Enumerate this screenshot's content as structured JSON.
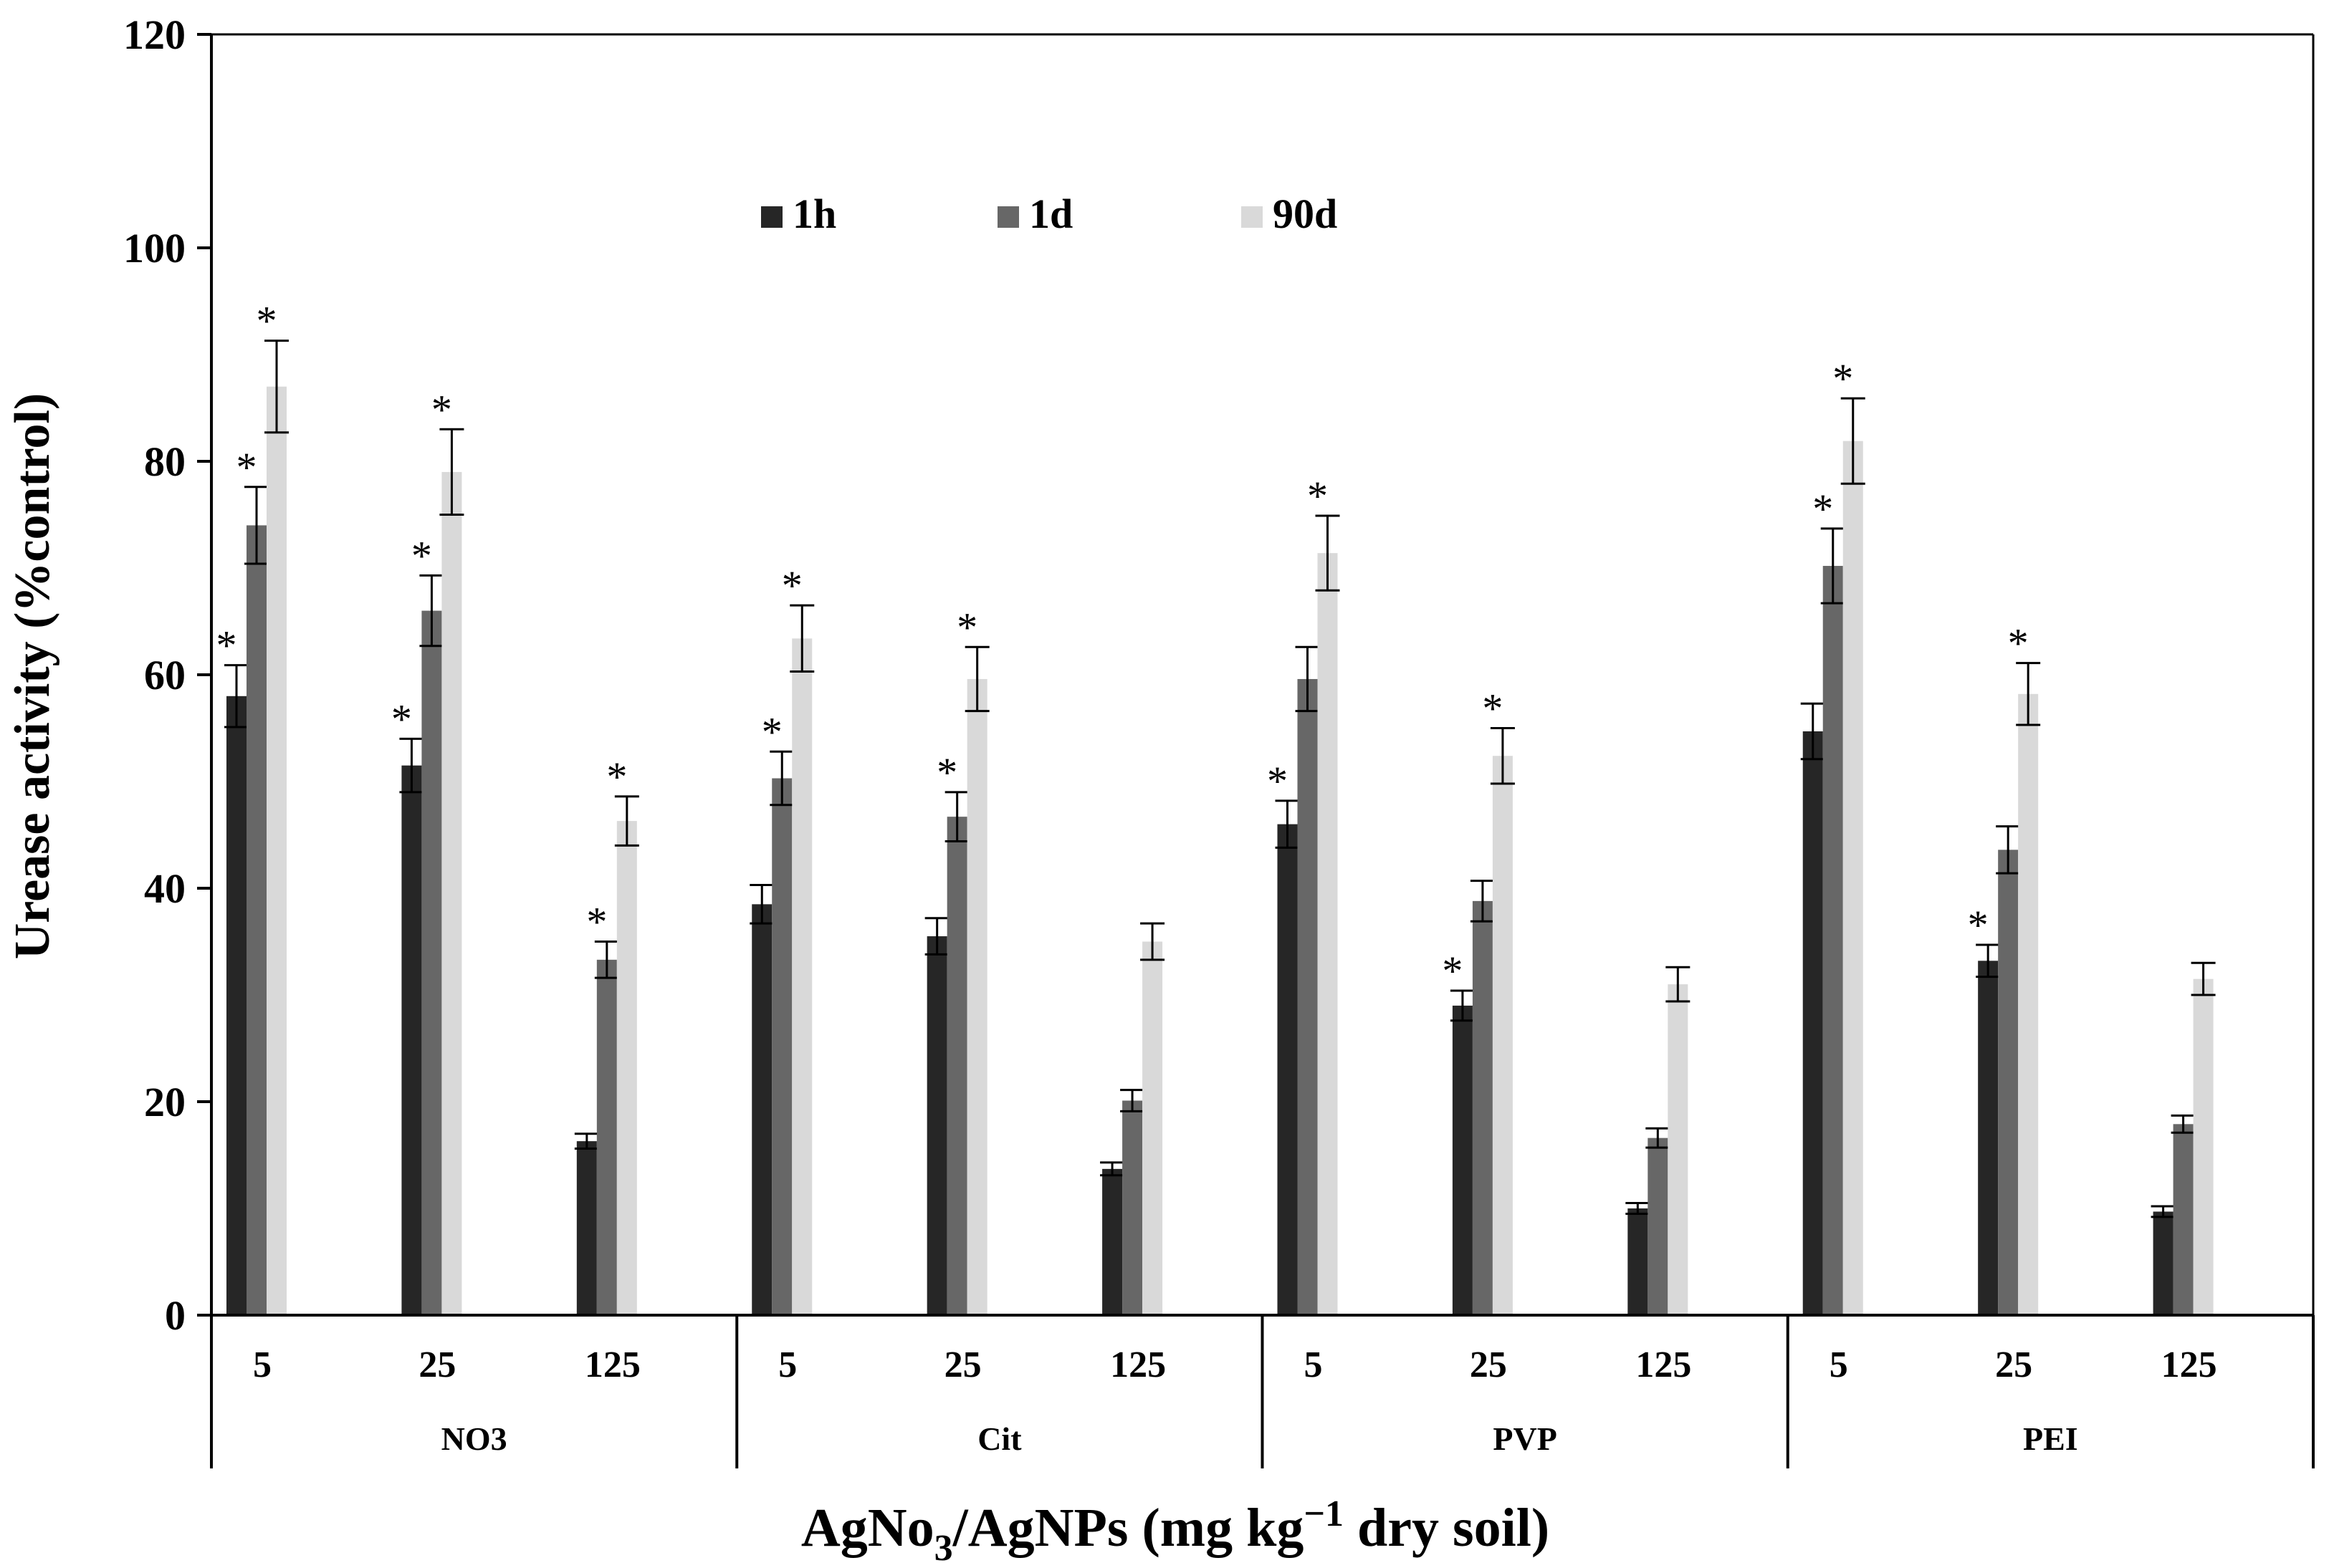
{
  "chart_data": {
    "type": "bar",
    "ylabel": "Urease activity (%control)",
    "xlabel": {
      "main": "AgNo",
      "sub": "3",
      "middle": "/AgNPs (mg kg",
      "sup": "−1",
      "end": " dry soil)"
    },
    "ylim": [
      0,
      120
    ],
    "yticks": [
      "0",
      "20",
      "40",
      "60",
      "80",
      "100",
      "120"
    ],
    "grid": false,
    "legend_position": "top-center",
    "groups": [
      "NO3",
      "Cit",
      "PVP",
      "PEI"
    ],
    "doses": [
      "5",
      "25",
      "125"
    ],
    "series": [
      {
        "name": "1h",
        "color": "#262626",
        "values": [
          58,
          51.5,
          16.3,
          38.5,
          35.5,
          13.7,
          46,
          29,
          10,
          54.7,
          33.2,
          9.7
        ],
        "errors": [
          2.9,
          2.5,
          0.7,
          1.8,
          1.7,
          0.6,
          2.2,
          1.4,
          0.5,
          2.6,
          1.5,
          0.5
        ],
        "significant": [
          true,
          true,
          false,
          false,
          false,
          false,
          true,
          true,
          false,
          false,
          true,
          false
        ]
      },
      {
        "name": "1d",
        "color": "#676767",
        "values": [
          74,
          66,
          33.3,
          50.3,
          46.7,
          20.1,
          59.6,
          38.8,
          16.6,
          70.2,
          43.6,
          17.9
        ],
        "errors": [
          3.6,
          3.3,
          1.7,
          2.5,
          2.3,
          1,
          3,
          1.9,
          0.9,
          3.5,
          2.2,
          0.8
        ],
        "significant": [
          true,
          true,
          true,
          true,
          true,
          false,
          false,
          false,
          false,
          true,
          false,
          false
        ]
      },
      {
        "name": "90d",
        "color": "#d9d9d9",
        "values": [
          87,
          79,
          46.3,
          63.4,
          59.6,
          35,
          71.4,
          52.4,
          31,
          81.9,
          58.2,
          31.5
        ],
        "errors": [
          4.3,
          4,
          2.3,
          3.1,
          3,
          1.7,
          3.5,
          2.6,
          1.6,
          4,
          2.9,
          1.5
        ],
        "significant": [
          true,
          true,
          true,
          true,
          true,
          false,
          true,
          true,
          false,
          true,
          true,
          false
        ]
      }
    ]
  }
}
